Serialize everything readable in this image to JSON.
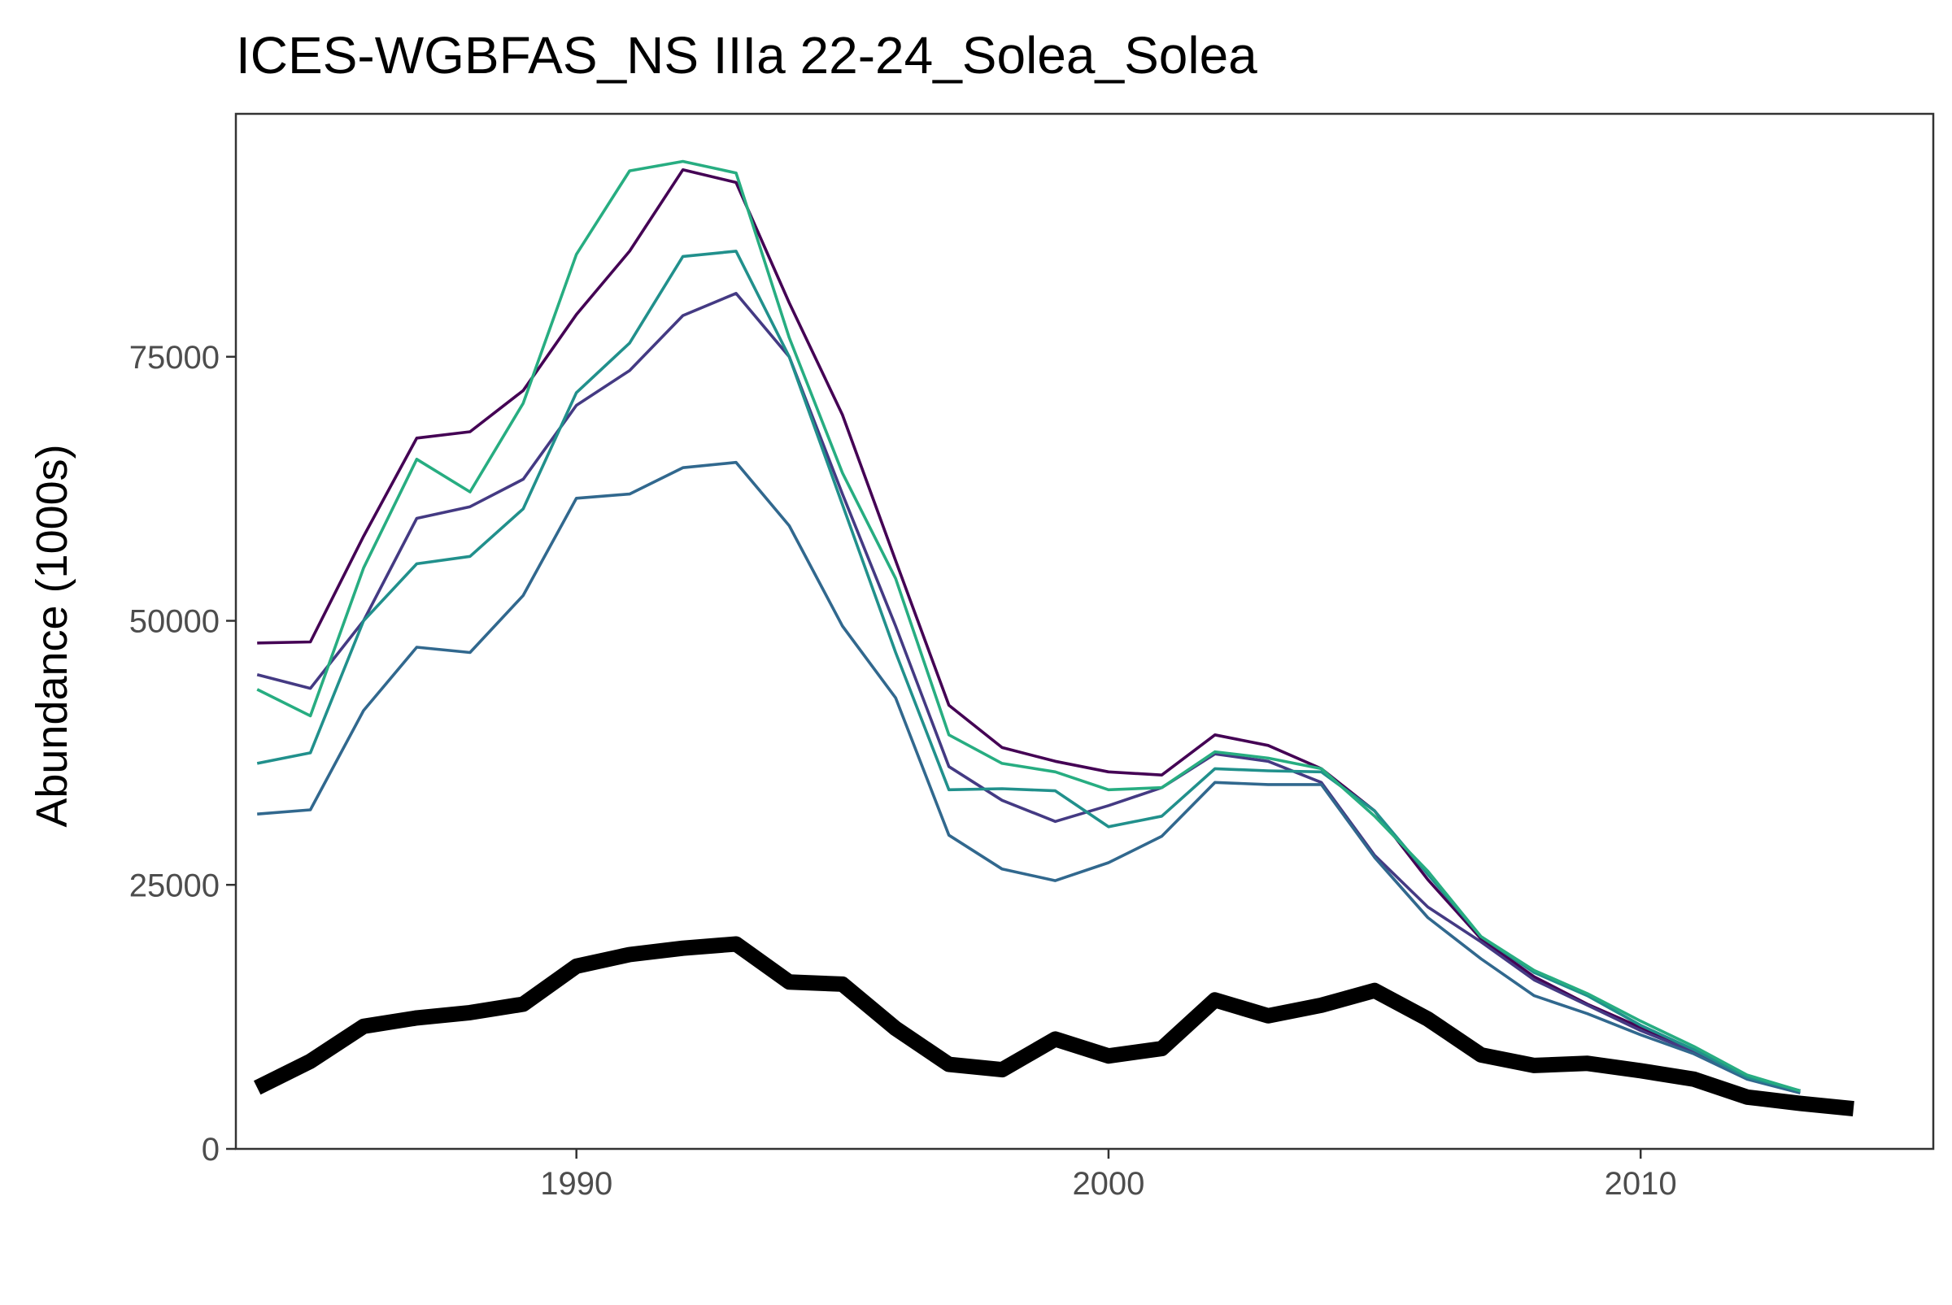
{
  "chart_data": {
    "type": "line",
    "title": "ICES-WGBFAS_NS IIIa 22-24_Solea_Solea",
    "xlabel": "",
    "ylabel": "Abundance (1000s)",
    "xlim": [
      1983.6,
      2015.5
    ],
    "ylim": [
      0,
      98000
    ],
    "xticks": [
      1990,
      2000,
      2010
    ],
    "yticks": [
      0,
      25000,
      50000,
      75000
    ],
    "grid": false,
    "legend": "none",
    "x": [
      1984,
      1985,
      1986,
      1987,
      1988,
      1989,
      1990,
      1991,
      1992,
      1993,
      1994,
      1995,
      1996,
      1997,
      1998,
      1999,
      2000,
      2001,
      2002,
      2003,
      2004,
      2005,
      2006,
      2007,
      2008,
      2009,
      2010,
      2011,
      2012,
      2013,
      2014
    ],
    "series": [
      {
        "color": "#000000",
        "emphasis": true,
        "values": [
          5800,
          8300,
          11600,
          12400,
          12900,
          13700,
          17300,
          18400,
          19000,
          19400,
          15800,
          15600,
          11400,
          8000,
          7500,
          10400,
          8800,
          9500,
          14100,
          12600,
          13600,
          15000,
          12300,
          8900,
          7900,
          8100,
          7400,
          6600,
          4900,
          4300,
          3800
        ]
      },
      {
        "color": "#440154",
        "values": [
          47900,
          48000,
          58000,
          67300,
          67900,
          71800,
          79000,
          85000,
          92700,
          91500,
          80100,
          69500,
          55700,
          42000,
          38000,
          36700,
          35700,
          35400,
          39200,
          38200,
          36000,
          32000,
          25500,
          19900,
          16300,
          13700,
          11500,
          9300,
          6800,
          5500,
          null
        ]
      },
      {
        "color": "#443a83",
        "values": [
          44900,
          43600,
          50000,
          59700,
          60800,
          63400,
          70400,
          73700,
          78900,
          81000,
          75000,
          62000,
          49500,
          36200,
          33000,
          31000,
          32500,
          34200,
          37400,
          36700,
          34700,
          27800,
          22900,
          19600,
          16000,
          13600,
          11200,
          9200,
          6800,
          5500,
          null
        ]
      },
      {
        "color": "#31688e",
        "values": [
          31700,
          32100,
          41500,
          47500,
          47000,
          52400,
          61600,
          62000,
          64500,
          65000,
          59000,
          49500,
          42700,
          29700,
          26500,
          25400,
          27100,
          29600,
          34700,
          34500,
          34500,
          27600,
          21900,
          18000,
          14500,
          12800,
          10800,
          9000,
          6600,
          5300,
          null
        ]
      },
      {
        "color": "#21908c",
        "values": [
          36500,
          37500,
          50000,
          55400,
          56100,
          60600,
          71600,
          76300,
          84500,
          85000,
          75000,
          61000,
          47000,
          34000,
          34100,
          33900,
          30500,
          31500,
          36000,
          35800,
          35700,
          32000,
          26000,
          20100,
          16700,
          14500,
          11700,
          9400,
          6800,
          5500,
          null
        ]
      },
      {
        "color": "#27ad81",
        "values": [
          43500,
          41000,
          55000,
          65300,
          62200,
          70600,
          84700,
          92600,
          93500,
          92400,
          76800,
          64000,
          54000,
          39200,
          36500,
          35700,
          34000,
          34200,
          37600,
          37000,
          36000,
          31500,
          26300,
          20100,
          16900,
          14700,
          12100,
          9700,
          7000,
          5500,
          null
        ]
      }
    ]
  }
}
